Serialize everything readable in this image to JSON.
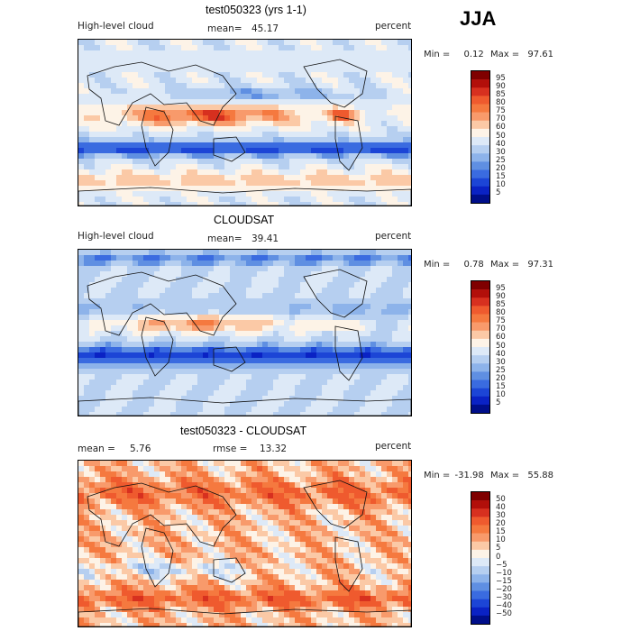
{
  "page": {
    "season": "JJA"
  },
  "chart_data": [
    {
      "type": "heatmap",
      "title": "test050323 (yrs 1-1)",
      "variable": "High-level cloud",
      "units": "percent",
      "stat1_label": "mean=",
      "stat1_value": "45.17",
      "min_label": "Min =",
      "min_value": "0.12",
      "max_label": "Max =",
      "max_value": "97.61",
      "colorbar_levels": [
        "95",
        "90",
        "85",
        "80",
        "75",
        "70",
        "60",
        "50",
        "40",
        "30",
        "25",
        "20",
        "15",
        "10",
        "5"
      ],
      "colors": [
        "#7f0000",
        "#b20f0a",
        "#d7301f",
        "#ef5a2e",
        "#f5793f",
        "#f89a6b",
        "#fbc9a6",
        "#fdf3e7",
        "#dde9f7",
        "#b6cff0",
        "#8db3ea",
        "#5f8fe2",
        "#3a6be0",
        "#1c45d6",
        "#0a22c4",
        "#000e8a"
      ],
      "ylim": [
        -90,
        90
      ],
      "xlim": [
        0,
        360
      ],
      "grid": false
    },
    {
      "type": "heatmap",
      "title": "CLOUDSAT",
      "variable": "High-level cloud",
      "units": "percent",
      "stat1_label": "mean=",
      "stat1_value": "39.41",
      "min_label": "Min =",
      "min_value": "0.78",
      "max_label": "Max =",
      "max_value": "97.31",
      "colorbar_levels": [
        "95",
        "90",
        "85",
        "80",
        "75",
        "70",
        "60",
        "50",
        "40",
        "30",
        "25",
        "20",
        "15",
        "10",
        "5"
      ],
      "colors": [
        "#7f0000",
        "#b20f0a",
        "#d7301f",
        "#ef5a2e",
        "#f5793f",
        "#f89a6b",
        "#fbc9a6",
        "#fdf3e7",
        "#dde9f7",
        "#b6cff0",
        "#8db3ea",
        "#5f8fe2",
        "#3a6be0",
        "#1c45d6",
        "#0a22c4",
        "#000e8a"
      ],
      "ylim": [
        -90,
        90
      ],
      "xlim": [
        0,
        360
      ],
      "grid": false
    },
    {
      "type": "heatmap",
      "title": "test050323 - CLOUDSAT",
      "variable": "",
      "units": "percent",
      "stat1_label": "mean =",
      "stat1_value": "5.76",
      "stat2_label": "rmse =",
      "stat2_value": "13.32",
      "min_label": "Min =",
      "min_value": "-31.98",
      "max_label": "Max =",
      "max_value": "55.88",
      "colorbar_levels": [
        "50",
        "40",
        "30",
        "20",
        "15",
        "10",
        "5",
        "0",
        "−5",
        "−10",
        "−15",
        "−20",
        "−30",
        "−40",
        "−50"
      ],
      "colors": [
        "#7f0000",
        "#b20f0a",
        "#d7301f",
        "#ef5a2e",
        "#f5793f",
        "#f89a6b",
        "#fbc9a6",
        "#fdf3e7",
        "#dde9f7",
        "#b6cff0",
        "#8db3ea",
        "#5f8fe2",
        "#3a6be0",
        "#1c45d6",
        "#0a22c4",
        "#000e8a"
      ],
      "ylim": [
        -90,
        90
      ],
      "xlim": [
        0,
        360
      ],
      "grid": false
    }
  ]
}
